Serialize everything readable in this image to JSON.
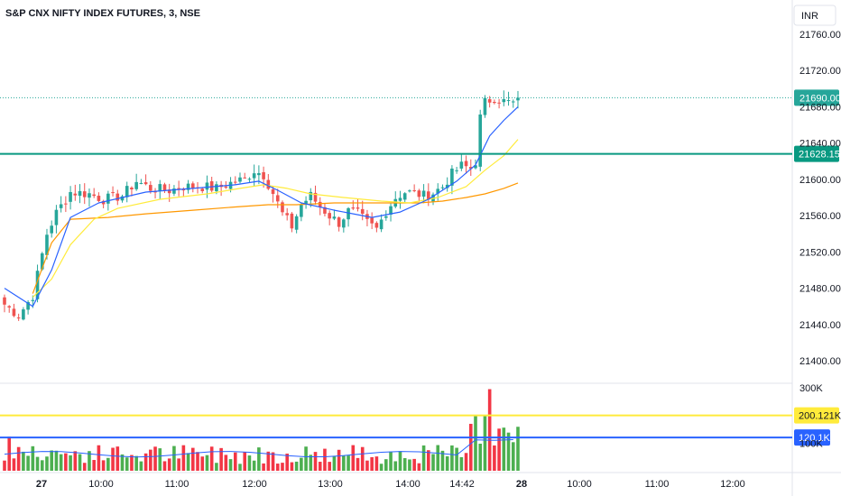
{
  "title": "S&P CNX NIFTY INDEX FUTURES, 3, NSE",
  "currency": "INR",
  "colors": {
    "up": "#26a69a",
    "down": "#ef5350",
    "vol_up": "#4caf50",
    "vol_down": "#f23645",
    "ema_fast": "#2962ff",
    "ema_mid": "#ffeb3b",
    "ema_slow": "#ff9800",
    "support": "#089981",
    "vol_ma_high": "#ffeb3b",
    "vol_ma_low": "#2962ff"
  },
  "chart_data": {
    "type": "candlestick",
    "y_ticks": [
      "21760.00",
      "21720.00",
      "21680.00",
      "21640.00",
      "21600.00",
      "21560.00",
      "21520.00",
      "21480.00",
      "21440.00",
      "21400.00"
    ],
    "volume_ticks": [
      "300K",
      "100K"
    ],
    "x_ticks": [
      "27",
      "10:00",
      "11:00",
      "12:00",
      "13:00",
      "14:00",
      "14:42",
      "28",
      "10:00",
      "11:00",
      "12:00"
    ],
    "price_min": 21400,
    "price_max": 21760,
    "volume_max": 300000,
    "last_price": {
      "value": 21690.0,
      "label": "21690.00"
    },
    "support_level": {
      "value": 21628.15,
      "label": "21628.15"
    },
    "volume_level_high": {
      "value": 200121,
      "label": "200.121K"
    },
    "volume_level_low": {
      "value": 120100,
      "label": "120.1K"
    },
    "close_path": [
      [
        0,
        21462
      ],
      [
        3,
        21450
      ],
      [
        6,
        21472
      ],
      [
        9,
        21540
      ],
      [
        11,
        21563
      ],
      [
        14,
        21586
      ],
      [
        18,
        21584
      ],
      [
        21,
        21578
      ],
      [
        25,
        21582
      ],
      [
        28,
        21598
      ],
      [
        31,
        21590
      ],
      [
        35,
        21588
      ],
      [
        38,
        21592
      ],
      [
        42,
        21592
      ],
      [
        45,
        21590
      ],
      [
        49,
        21598
      ],
      [
        51,
        21600
      ],
      [
        53,
        21610
      ],
      [
        55,
        21605
      ],
      [
        57,
        21585
      ],
      [
        59,
        21562
      ],
      [
        61,
        21548
      ],
      [
        63,
        21572
      ],
      [
        65,
        21582
      ],
      [
        67,
        21570
      ],
      [
        69,
        21560
      ],
      [
        71,
        21552
      ],
      [
        73,
        21565
      ],
      [
        75,
        21562
      ],
      [
        77,
        21552
      ],
      [
        79,
        21545
      ],
      [
        81,
        21565
      ],
      [
        83,
        21580
      ],
      [
        85,
        21586
      ],
      [
        87,
        21585
      ],
      [
        89,
        21582
      ],
      [
        91,
        21585
      ],
      [
        93,
        21592
      ],
      [
        95,
        21606
      ],
      [
        97,
        21615
      ],
      [
        99,
        21612
      ],
      [
        100,
        21620
      ],
      [
        101,
        21668
      ],
      [
        102,
        21685
      ],
      [
        104,
        21690
      ],
      [
        106,
        21686
      ],
      [
        108,
        21684
      ],
      [
        109,
        21690
      ]
    ],
    "ema_fast": [
      [
        0,
        21480
      ],
      [
        6,
        21460
      ],
      [
        10,
        21500
      ],
      [
        14,
        21558
      ],
      [
        20,
        21574
      ],
      [
        30,
        21586
      ],
      [
        40,
        21590
      ],
      [
        49,
        21594
      ],
      [
        54,
        21598
      ],
      [
        58,
        21588
      ],
      [
        63,
        21574
      ],
      [
        70,
        21566
      ],
      [
        78,
        21558
      ],
      [
        84,
        21564
      ],
      [
        90,
        21578
      ],
      [
        96,
        21598
      ],
      [
        100,
        21616
      ],
      [
        103,
        21648
      ],
      [
        106,
        21665
      ],
      [
        109,
        21680
      ]
    ],
    "ema_mid": [
      [
        6,
        21470
      ],
      [
        10,
        21490
      ],
      [
        14,
        21528
      ],
      [
        19,
        21556
      ],
      [
        24,
        21568
      ],
      [
        33,
        21578
      ],
      [
        43,
        21584
      ],
      [
        50,
        21590
      ],
      [
        55,
        21594
      ],
      [
        60,
        21590
      ],
      [
        65,
        21584
      ],
      [
        72,
        21580
      ],
      [
        80,
        21576
      ],
      [
        86,
        21574
      ],
      [
        92,
        21580
      ],
      [
        98,
        21592
      ],
      [
        102,
        21610
      ],
      [
        106,
        21626
      ],
      [
        109,
        21644
      ]
    ],
    "ema_slow": [
      [
        6,
        21474
      ],
      [
        10,
        21530
      ],
      [
        14,
        21556
      ],
      [
        22,
        21558
      ],
      [
        30,
        21562
      ],
      [
        40,
        21566
      ],
      [
        50,
        21570
      ],
      [
        56,
        21572
      ],
      [
        62,
        21572
      ],
      [
        70,
        21574
      ],
      [
        80,
        21574
      ],
      [
        88,
        21574
      ],
      [
        93,
        21576
      ],
      [
        98,
        21580
      ],
      [
        102,
        21584
      ],
      [
        106,
        21590
      ],
      [
        109,
        21596
      ]
    ],
    "volume_seed": 7
  }
}
